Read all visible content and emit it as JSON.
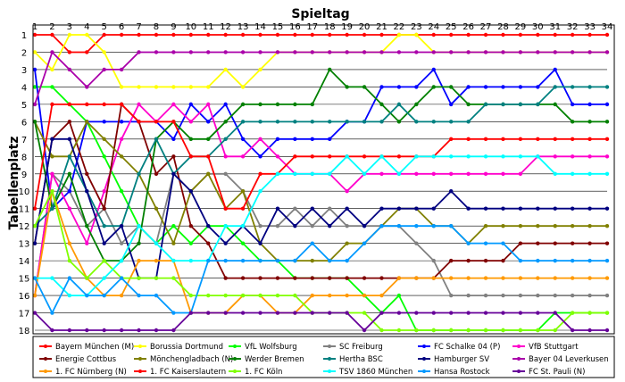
{
  "chart_data": {
    "type": "line",
    "title": "Spieltag",
    "ylabel": "Tabellenplatz",
    "x": [
      1,
      2,
      3,
      4,
      5,
      6,
      7,
      8,
      9,
      10,
      11,
      12,
      13,
      14,
      15,
      16,
      17,
      18,
      19,
      20,
      21,
      22,
      23,
      24,
      25,
      26,
      27,
      28,
      29,
      30,
      31,
      32,
      33,
      34
    ],
    "ylim": [
      1,
      18
    ],
    "yticks": [
      1,
      2,
      3,
      4,
      5,
      6,
      7,
      8,
      9,
      10,
      11,
      12,
      13,
      14,
      15,
      16,
      17,
      18
    ],
    "grid": true,
    "legend_position": "bottom",
    "series": [
      {
        "name": "Bayern München (M)",
        "color": "#ff0000",
        "values": [
          1,
          1,
          2,
          2,
          1,
          1,
          1,
          1,
          1,
          1,
          1,
          1,
          1,
          1,
          1,
          1,
          1,
          1,
          1,
          1,
          1,
          1,
          1,
          1,
          1,
          1,
          1,
          1,
          1,
          1,
          1,
          1,
          1,
          1
        ]
      },
      {
        "name": "Borussia Dortmund",
        "color": "#ffff00",
        "values": [
          2,
          3,
          1,
          1,
          2,
          4,
          4,
          4,
          4,
          4,
          4,
          3,
          4,
          3,
          2,
          2,
          2,
          2,
          2,
          2,
          2,
          1,
          1,
          2,
          2,
          2,
          2,
          2,
          2,
          2,
          2,
          2,
          2,
          2
        ]
      },
      {
        "name": "VfL Wolfsburg",
        "color": "#00ff00",
        "values": [
          4,
          4,
          5,
          6,
          8,
          10,
          12,
          13,
          12,
          13,
          12,
          12,
          13,
          14,
          14,
          15,
          15,
          15,
          15,
          16,
          17,
          16,
          18,
          18,
          18,
          18,
          18,
          18,
          18,
          18,
          17,
          17,
          17,
          17
        ]
      },
      {
        "name": "SC Freiburg",
        "color": "#808080",
        "values": [
          16,
          9,
          10,
          12,
          11,
          13,
          12,
          13,
          9,
          10,
          9,
          9,
          10,
          12,
          12,
          11,
          12,
          11,
          12,
          12,
          12,
          12,
          13,
          14,
          16,
          16,
          16,
          16,
          16,
          16,
          16,
          16,
          16,
          16
        ]
      },
      {
        "name": "FC Schalke 04 (P)",
        "color": "#0000ff",
        "values": [
          3,
          11,
          10,
          6,
          6,
          6,
          6,
          6,
          7,
          5,
          6,
          5,
          7,
          8,
          7,
          7,
          7,
          7,
          6,
          6,
          4,
          4,
          4,
          3,
          5,
          4,
          4,
          4,
          4,
          4,
          3,
          5,
          5,
          5
        ]
      },
      {
        "name": "VfB Stuttgart",
        "color": "#ff00cc",
        "values": [
          16,
          9,
          11,
          13,
          10,
          7,
          5,
          6,
          5,
          6,
          5,
          8,
          8,
          7,
          8,
          9,
          9,
          9,
          10,
          9,
          9,
          9,
          9,
          9,
          9,
          9,
          9,
          9,
          9,
          8,
          8,
          8,
          8,
          8
        ]
      },
      {
        "name": "Energie Cottbus",
        "color": "#800000",
        "values": [
          13,
          7,
          6,
          9,
          11,
          5,
          6,
          9,
          8,
          12,
          13,
          15,
          15,
          15,
          15,
          15,
          15,
          15,
          15,
          15,
          15,
          15,
          15,
          15,
          14,
          14,
          14,
          14,
          13,
          13,
          13,
          13,
          13,
          13
        ]
      },
      {
        "name": "Mönchengladbach (N)",
        "color": "#808000",
        "values": [
          6,
          8,
          8,
          6,
          7,
          8,
          9,
          11,
          13,
          10,
          9,
          11,
          10,
          13,
          14,
          14,
          14,
          14,
          13,
          13,
          12,
          11,
          11,
          12,
          12,
          13,
          12,
          12,
          12,
          12,
          12,
          12,
          12,
          12
        ]
      },
      {
        "name": "Werder Bremen",
        "color": "#008000",
        "values": [
          6,
          11,
          9,
          12,
          14,
          14,
          13,
          7,
          6,
          7,
          7,
          6,
          5,
          5,
          5,
          5,
          5,
          3,
          4,
          4,
          5,
          6,
          5,
          4,
          4,
          5,
          5,
          5,
          5,
          5,
          5,
          6,
          6,
          6
        ]
      },
      {
        "name": "Hertha BSC",
        "color": "#008080",
        "values": [
          12,
          11,
          8,
          10,
          12,
          12,
          9,
          7,
          9,
          8,
          8,
          7,
          6,
          6,
          6,
          6,
          6,
          6,
          6,
          6,
          6,
          5,
          6,
          6,
          6,
          6,
          5,
          5,
          5,
          5,
          4,
          4,
          4,
          4
        ]
      },
      {
        "name": "Hamburger SV",
        "color": "#000080",
        "values": [
          13,
          7,
          7,
          10,
          13,
          12,
          15,
          15,
          9,
          10,
          12,
          13,
          12,
          13,
          11,
          12,
          11,
          12,
          11,
          12,
          11,
          11,
          11,
          11,
          10,
          11,
          11,
          11,
          11,
          11,
          11,
          11,
          11,
          11
        ]
      },
      {
        "name": "Bayer 04 Leverkusen",
        "color": "#aa00aa",
        "values": [
          5,
          2,
          3,
          4,
          3,
          3,
          2,
          2,
          2,
          2,
          2,
          2,
          2,
          2,
          2,
          2,
          2,
          2,
          2,
          2,
          2,
          2,
          2,
          2,
          2,
          2,
          2,
          2,
          2,
          2,
          2,
          2,
          2,
          2
        ]
      },
      {
        "name": "1. FC Nürnberg (N)",
        "color": "#ff9900",
        "values": [
          16,
          10,
          13,
          15,
          16,
          16,
          14,
          14,
          14,
          17,
          17,
          17,
          16,
          16,
          17,
          17,
          16,
          16,
          16,
          16,
          16,
          15,
          15,
          15,
          15,
          15,
          15,
          15,
          15,
          15,
          15,
          15,
          15,
          15
        ]
      },
      {
        "name": "1. FC Kaiserslautern",
        "color": "#ff0000",
        "values": [
          11,
          5,
          5,
          5,
          5,
          5,
          6,
          6,
          6,
          8,
          8,
          11,
          11,
          9,
          9,
          8,
          8,
          8,
          8,
          8,
          8,
          8,
          8,
          8,
          7,
          7,
          7,
          7,
          7,
          7,
          7,
          7,
          7,
          7
        ]
      },
      {
        "name": "1. FC Köln",
        "color": "#80ff00",
        "values": [
          12,
          10,
          14,
          15,
          14,
          15,
          15,
          15,
          15,
          16,
          16,
          16,
          16,
          16,
          16,
          16,
          17,
          17,
          17,
          17,
          18,
          18,
          18,
          18,
          18,
          18,
          18,
          18,
          18,
          18,
          18,
          17,
          17,
          17
        ]
      },
      {
        "name": "TSV 1860 München",
        "color": "#00ffff",
        "values": [
          15,
          15,
          16,
          16,
          15,
          14,
          12,
          13,
          14,
          14,
          14,
          12,
          12,
          10,
          9,
          9,
          9,
          9,
          8,
          9,
          8,
          9,
          8,
          8,
          8,
          8,
          8,
          8,
          8,
          8,
          9,
          9,
          9,
          9
        ]
      },
      {
        "name": "Hansa Rostock",
        "color": "#0099ff",
        "values": [
          15,
          17,
          15,
          16,
          16,
          15,
          16,
          16,
          17,
          17,
          14,
          14,
          14,
          14,
          14,
          14,
          13,
          14,
          14,
          13,
          12,
          12,
          12,
          12,
          12,
          13,
          13,
          13,
          14,
          14,
          14,
          14,
          14,
          14
        ]
      },
      {
        "name": "FC St. Pauli (N)",
        "color": "#660099",
        "values": [
          17,
          18,
          18,
          18,
          18,
          18,
          18,
          18,
          18,
          17,
          17,
          17,
          17,
          17,
          17,
          17,
          17,
          17,
          17,
          18,
          17,
          17,
          17,
          17,
          17,
          17,
          17,
          17,
          17,
          17,
          17,
          18,
          18,
          18
        ]
      }
    ]
  }
}
